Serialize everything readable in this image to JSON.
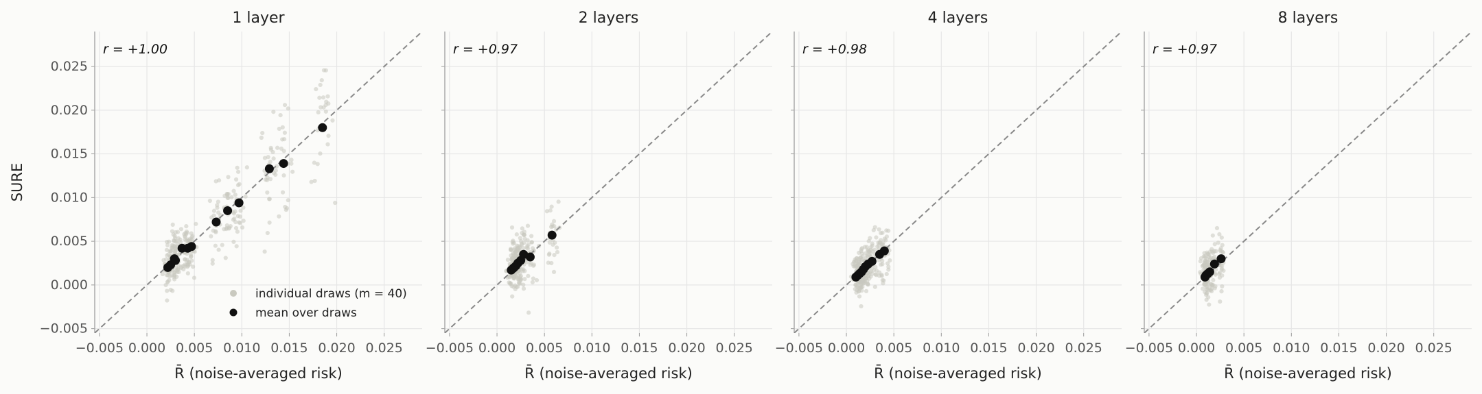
{
  "chart_data": {
    "type": "scatter",
    "ylabel": "SURE",
    "xlabel": "R̄  (noise-averaged risk)",
    "xlim": [
      -0.0055,
      0.029
    ],
    "ylim": [
      -0.0055,
      0.029
    ],
    "ticks": [
      "−0.005",
      "0.000",
      "0.005",
      "0.010",
      "0.015",
      "0.020",
      "0.025"
    ],
    "tick_values": [
      -0.005,
      0.0,
      0.005,
      0.01,
      0.015,
      0.02,
      0.025
    ],
    "grid": true,
    "reference_line": "y = x (dashed)",
    "legend": {
      "placement": "lower-right of first panel",
      "entries": [
        "individual draws (m = 40)",
        "mean over draws"
      ]
    },
    "colors": {
      "draws": "#c9c9bf",
      "mean": "#111111",
      "identity": "#888888",
      "grid": "#e6e6e6"
    },
    "panels": [
      {
        "title": "1 layer",
        "r": "r = +1.00",
        "mean_points": [
          {
            "x": 0.0022,
            "y": 0.002
          },
          {
            "x": 0.0025,
            "y": 0.0023
          },
          {
            "x": 0.0029,
            "y": 0.003
          },
          {
            "x": 0.003,
            "y": 0.0028
          },
          {
            "x": 0.0037,
            "y": 0.0042
          },
          {
            "x": 0.0043,
            "y": 0.0042
          },
          {
            "x": 0.0047,
            "y": 0.0044
          },
          {
            "x": 0.0073,
            "y": 0.0072
          },
          {
            "x": 0.0085,
            "y": 0.0085
          },
          {
            "x": 0.0097,
            "y": 0.0094
          },
          {
            "x": 0.0129,
            "y": 0.0133
          },
          {
            "x": 0.0144,
            "y": 0.0139
          },
          {
            "x": 0.0185,
            "y": 0.018
          }
        ]
      },
      {
        "title": "2 layers",
        "r": "r = +0.97",
        "mean_points": [
          {
            "x": 0.0015,
            "y": 0.0017
          },
          {
            "x": 0.0017,
            "y": 0.0019
          },
          {
            "x": 0.0018,
            "y": 0.002
          },
          {
            "x": 0.002,
            "y": 0.0022
          },
          {
            "x": 0.0022,
            "y": 0.0025
          },
          {
            "x": 0.0025,
            "y": 0.0028
          },
          {
            "x": 0.0028,
            "y": 0.0035
          },
          {
            "x": 0.0035,
            "y": 0.0032
          },
          {
            "x": 0.0058,
            "y": 0.0057
          }
        ]
      },
      {
        "title": "4 layers",
        "r": "r = +0.98",
        "mean_points": [
          {
            "x": 0.001,
            "y": 0.0009
          },
          {
            "x": 0.0012,
            "y": 0.0011
          },
          {
            "x": 0.0014,
            "y": 0.0013
          },
          {
            "x": 0.0016,
            "y": 0.0015
          },
          {
            "x": 0.0018,
            "y": 0.0018
          },
          {
            "x": 0.002,
            "y": 0.0021
          },
          {
            "x": 0.0023,
            "y": 0.0024
          },
          {
            "x": 0.0027,
            "y": 0.0027
          },
          {
            "x": 0.0035,
            "y": 0.0035
          },
          {
            "x": 0.004,
            "y": 0.0039
          }
        ]
      },
      {
        "title": "8 layers",
        "r": "r = +0.97",
        "mean_points": [
          {
            "x": 0.0009,
            "y": 0.0009
          },
          {
            "x": 0.001,
            "y": 0.0011
          },
          {
            "x": 0.0011,
            "y": 0.0012
          },
          {
            "x": 0.0012,
            "y": 0.0013
          },
          {
            "x": 0.0014,
            "y": 0.0015
          },
          {
            "x": 0.0019,
            "y": 0.0024
          },
          {
            "x": 0.0026,
            "y": 0.003
          }
        ]
      }
    ]
  }
}
